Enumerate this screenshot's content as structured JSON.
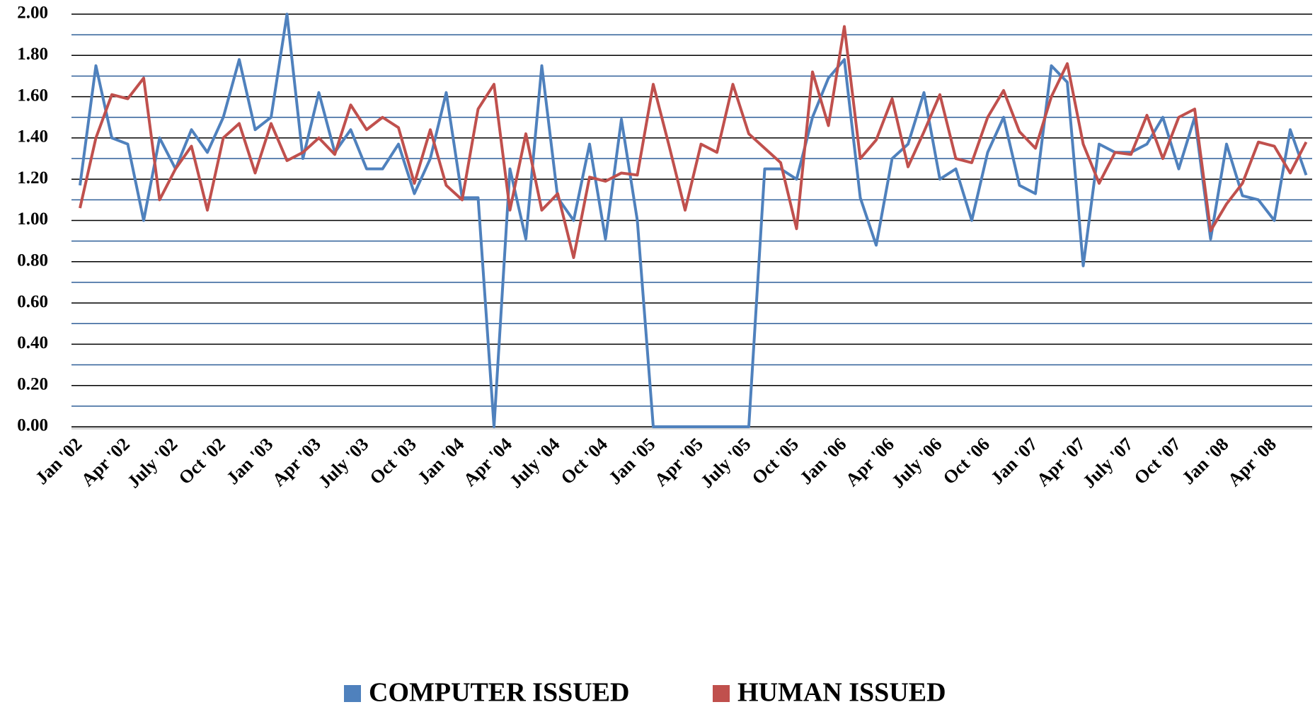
{
  "chart_data": {
    "type": "line",
    "categories": [
      "Jan '02",
      null,
      null,
      "Apr '02",
      null,
      null,
      "July '02",
      null,
      null,
      "Oct '02",
      null,
      null,
      "Jan '03",
      null,
      null,
      "Apr '03",
      null,
      null,
      "July '03",
      null,
      null,
      "Oct '03",
      null,
      null,
      "Jan '04",
      null,
      null,
      "Apr '04",
      null,
      null,
      "July '04",
      null,
      null,
      "Oct '04",
      null,
      null,
      "Jan '05",
      null,
      null,
      "Apr '05",
      null,
      null,
      "July '05",
      null,
      null,
      "Oct '05",
      null,
      null,
      "Jan '06",
      null,
      null,
      "Apr '06",
      null,
      null,
      "July '06",
      null,
      null,
      "Oct '06",
      null,
      null,
      "Jan '07",
      null,
      null,
      "Apr '07",
      null,
      null,
      "July '07",
      null,
      null,
      "Oct '07",
      null,
      null,
      "Jan '08",
      null,
      null,
      "Apr '08",
      null,
      null
    ],
    "series": [
      {
        "name": "COMPUTER ISSUED",
        "color": "#4f81bd",
        "values": [
          1.17,
          1.75,
          1.4,
          1.37,
          1.0,
          1.4,
          1.25,
          1.44,
          1.33,
          1.5,
          1.78,
          1.44,
          1.5,
          2.0,
          1.3,
          1.62,
          1.33,
          1.44,
          1.25,
          1.25,
          1.37,
          1.13,
          1.3,
          1.62,
          1.11,
          1.11,
          0,
          1.25,
          0.91,
          1.75,
          1.11,
          1.0,
          1.37,
          0.91,
          1.49,
          1.0,
          0,
          0,
          0,
          0,
          0,
          0,
          0,
          1.25,
          1.25,
          1.2,
          1.5,
          1.69,
          1.78,
          1.11,
          0.88,
          1.3,
          1.37,
          1.62,
          1.2,
          1.25,
          1.0,
          1.33,
          1.5,
          1.17,
          1.13,
          1.75,
          1.67,
          0.78,
          1.37,
          1.33,
          1.33,
          1.37,
          1.5,
          1.25,
          1.5,
          0.91,
          1.37,
          1.12,
          1.1,
          1.0,
          1.44,
          1.22
        ]
      },
      {
        "name": "HUMAN ISSUED",
        "color": "#c0504d",
        "values": [
          1.06,
          1.4,
          1.61,
          1.59,
          1.69,
          1.1,
          1.25,
          1.36,
          1.05,
          1.4,
          1.47,
          1.23,
          1.47,
          1.29,
          1.33,
          1.4,
          1.32,
          1.56,
          1.44,
          1.5,
          1.45,
          1.18,
          1.44,
          1.17,
          1.1,
          1.54,
          1.66,
          1.05,
          1.42,
          1.05,
          1.13,
          0.82,
          1.21,
          1.19,
          1.23,
          1.22,
          1.66,
          1.36,
          1.05,
          1.37,
          1.33,
          1.66,
          1.42,
          1.35,
          1.28,
          0.96,
          1.72,
          1.46,
          1.94,
          1.3,
          1.39,
          1.59,
          1.26,
          1.43,
          1.61,
          1.3,
          1.28,
          1.5,
          1.63,
          1.43,
          1.35,
          1.6,
          1.76,
          1.37,
          1.18,
          1.33,
          1.32,
          1.51,
          1.3,
          1.5,
          1.54,
          0.95,
          1.08,
          1.18,
          1.38,
          1.36,
          1.23,
          1.38
        ]
      }
    ],
    "ylim": [
      0,
      2
    ],
    "yticks": [
      {
        "value": 0,
        "label": "0.00"
      },
      {
        "value": 0.2,
        "label": "0.20"
      },
      {
        "value": 0.4,
        "label": "0.40"
      },
      {
        "value": 0.6,
        "label": "0.60"
      },
      {
        "value": 0.8,
        "label": "0.80"
      },
      {
        "value": 1,
        "label": "1.00"
      },
      {
        "value": 1.2,
        "label": "1.20"
      },
      {
        "value": 1.4,
        "label": "1.40"
      },
      {
        "value": 1.6,
        "label": "1.60"
      },
      {
        "value": 1.8,
        "label": "1.80"
      },
      {
        "value": 2,
        "label": "2.00"
      }
    ],
    "minor_yticks": [
      0.1,
      0.3,
      0.5,
      0.7,
      0.9,
      1.1,
      1.3,
      1.5,
      1.7,
      1.9
    ],
    "grid": true,
    "legend": "bottom"
  }
}
